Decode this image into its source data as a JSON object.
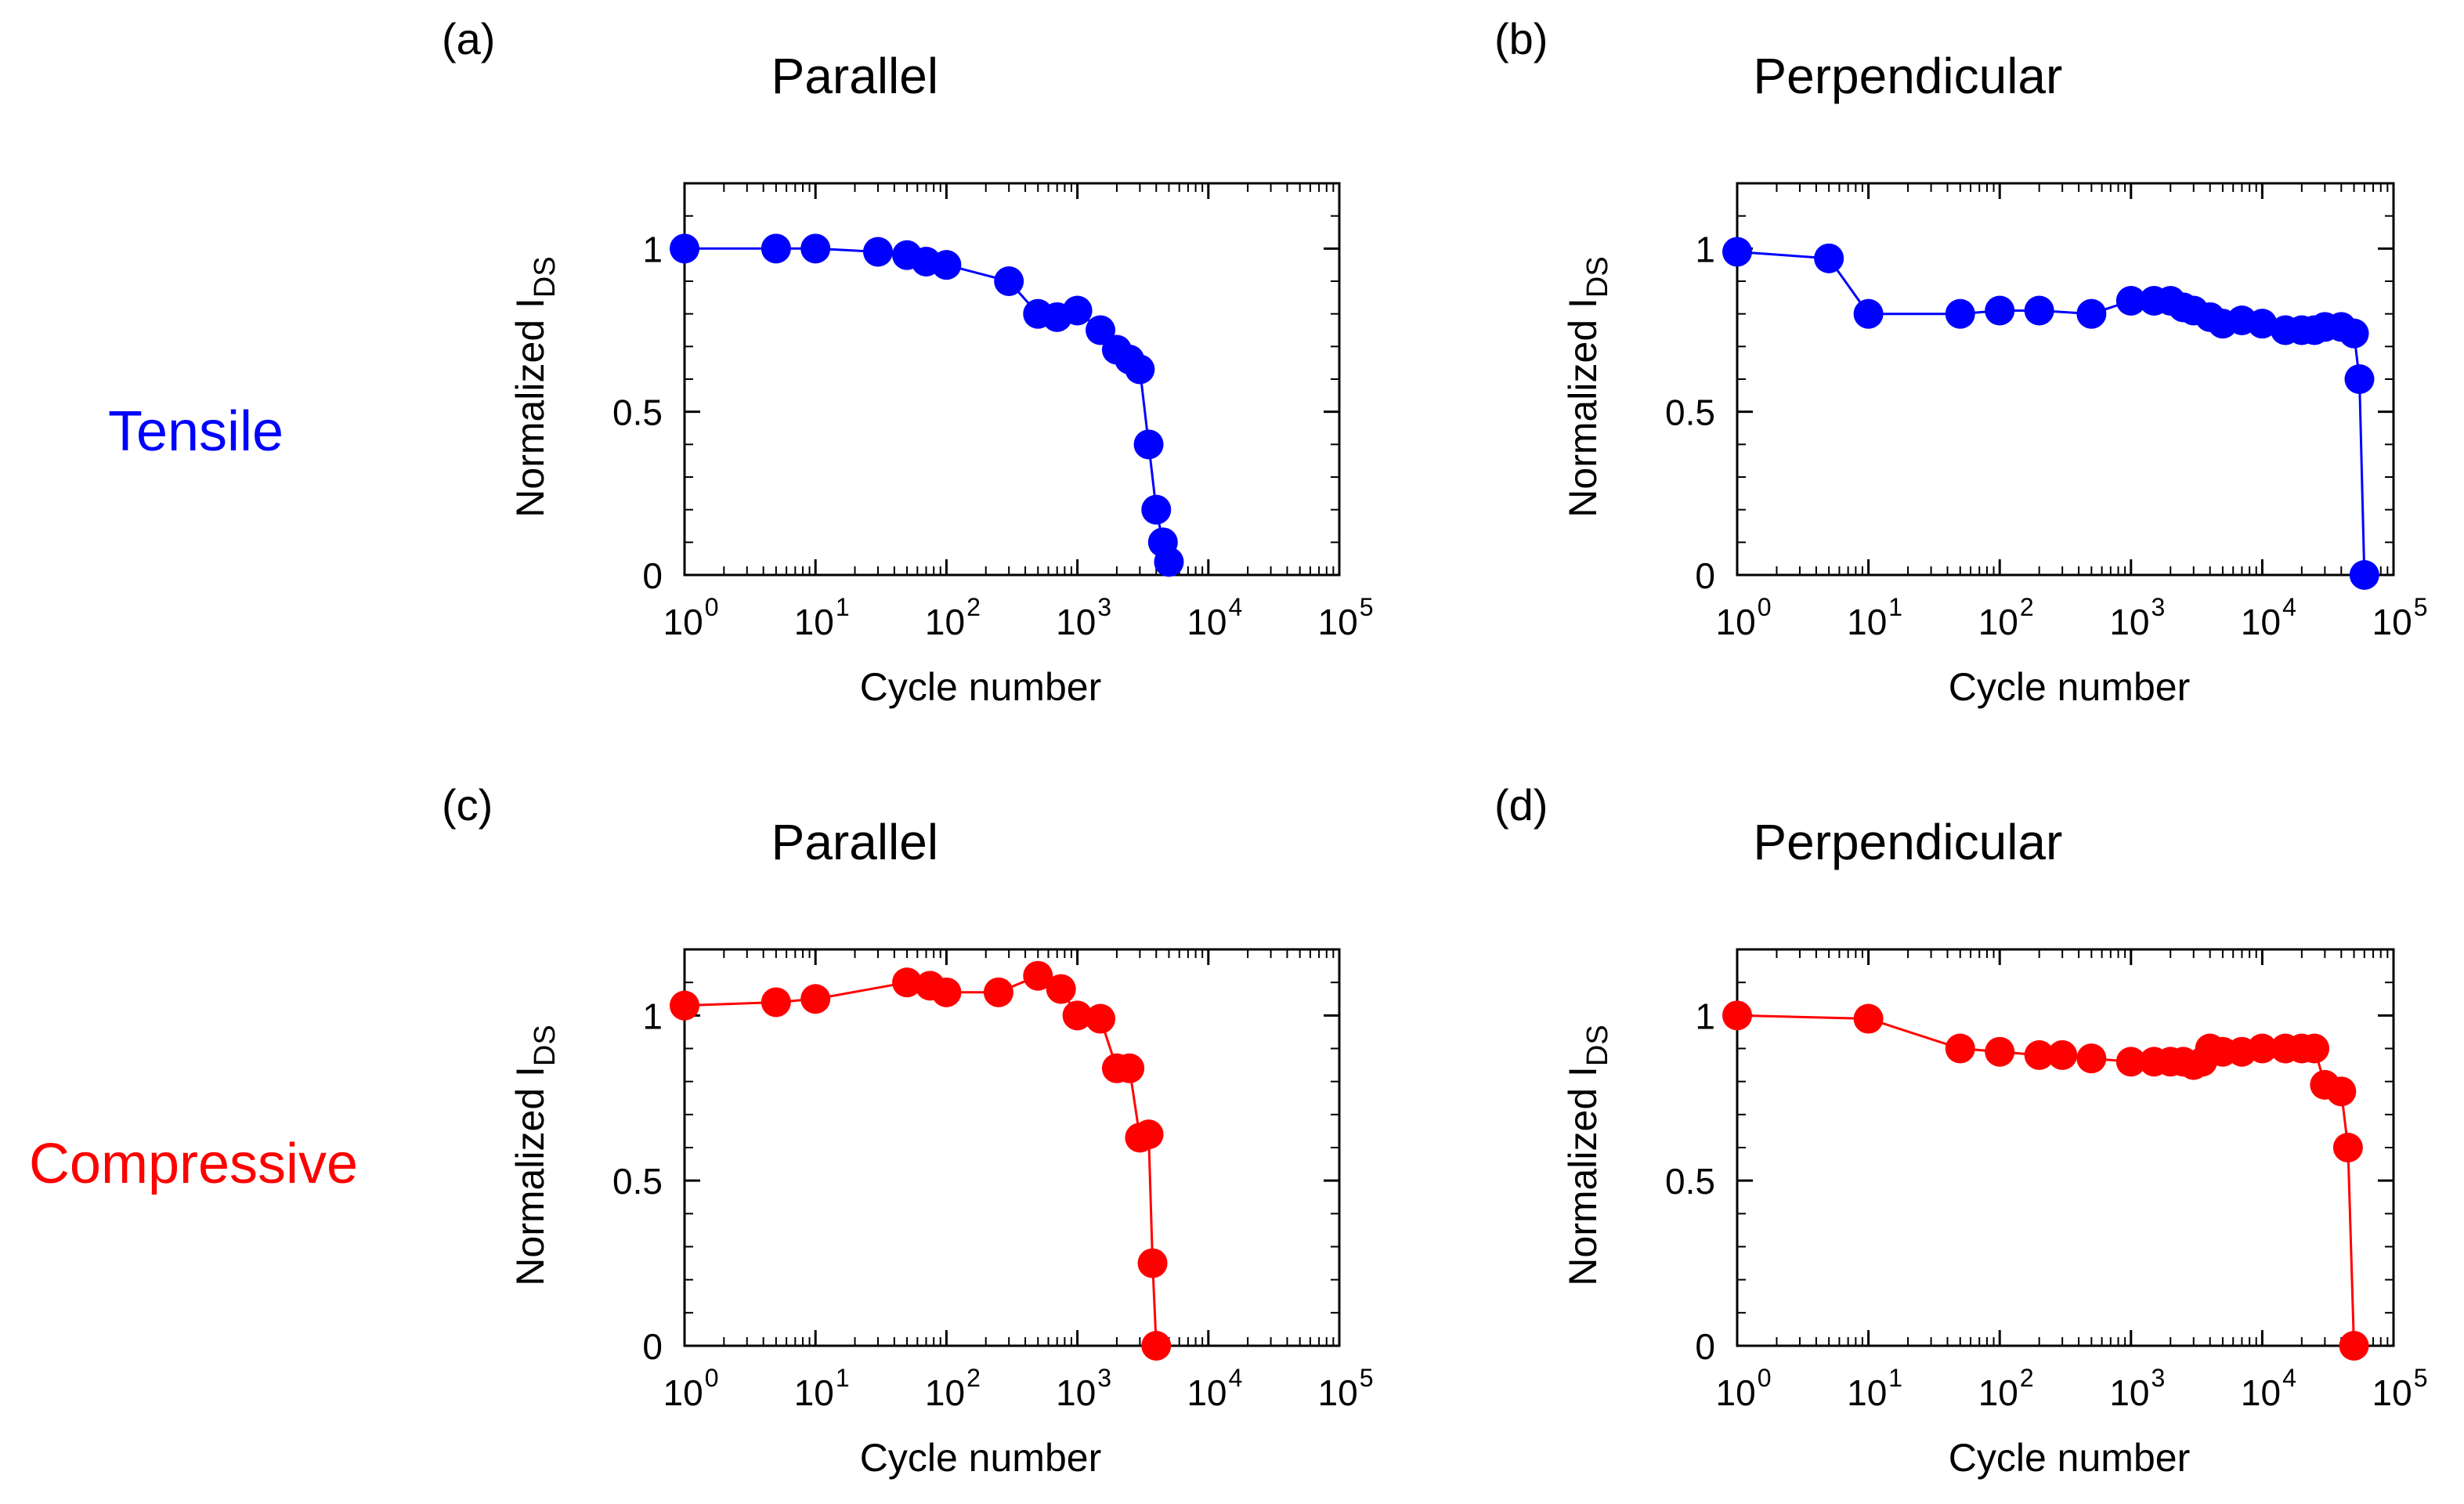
{
  "figure": {
    "row_labels": [
      {
        "text": "Tensile",
        "color": "#0000ff"
      },
      {
        "text": "Compressive",
        "color": "#ff0000"
      }
    ]
  },
  "chart_data": [
    {
      "type": "line",
      "panel_label": "(a)",
      "title": "Parallel",
      "xlabel": "Cycle number",
      "ylabel_main": "Normalized I",
      "ylabel_sub": "DS",
      "xscale": "log",
      "xlim": [
        1,
        100000
      ],
      "ylim": [
        0,
        1.2
      ],
      "x_ticks": [
        {
          "base": "10",
          "exp": "0"
        },
        {
          "base": "10",
          "exp": "1"
        },
        {
          "base": "10",
          "exp": "2"
        },
        {
          "base": "10",
          "exp": "3"
        },
        {
          "base": "10",
          "exp": "4"
        },
        {
          "base": "10",
          "exp": "5"
        }
      ],
      "y_ticks": [
        "0",
        "0.5",
        "1"
      ],
      "y_tick_values": [
        0,
        0.5,
        1
      ],
      "color": "#0000ff",
      "x": [
        1,
        5,
        10,
        30,
        50,
        70,
        100,
        300,
        500,
        700,
        1000,
        1500,
        2000,
        2500,
        3000,
        3500,
        4000,
        4500,
        5000
      ],
      "y": [
        1.0,
        1.0,
        1.0,
        0.99,
        0.98,
        0.96,
        0.95,
        0.9,
        0.8,
        0.79,
        0.81,
        0.75,
        0.69,
        0.66,
        0.63,
        0.4,
        0.2,
        0.1,
        0.04
      ]
    },
    {
      "type": "line",
      "panel_label": "(b)",
      "title": "Perpendicular",
      "xlabel": "Cycle number",
      "ylabel_main": "Normalized I",
      "ylabel_sub": "DS",
      "xscale": "log",
      "xlim": [
        1,
        100000
      ],
      "ylim": [
        0,
        1.2
      ],
      "x_ticks": [
        {
          "base": "10",
          "exp": "0"
        },
        {
          "base": "10",
          "exp": "1"
        },
        {
          "base": "10",
          "exp": "2"
        },
        {
          "base": "10",
          "exp": "3"
        },
        {
          "base": "10",
          "exp": "4"
        },
        {
          "base": "10",
          "exp": "5"
        }
      ],
      "y_ticks": [
        "0",
        "0.5",
        "1"
      ],
      "y_tick_values": [
        0,
        0.5,
        1
      ],
      "color": "#0000ff",
      "x": [
        1,
        5,
        10,
        50,
        100,
        200,
        500,
        1000,
        1500,
        2000,
        2500,
        3000,
        4000,
        5000,
        7000,
        10000,
        15000,
        20000,
        25000,
        30000,
        40000,
        50000,
        55000,
        60000
      ],
      "y": [
        0.99,
        0.97,
        0.8,
        0.8,
        0.81,
        0.81,
        0.8,
        0.84,
        0.84,
        0.84,
        0.82,
        0.81,
        0.79,
        0.77,
        0.78,
        0.77,
        0.75,
        0.75,
        0.75,
        0.76,
        0.76,
        0.74,
        0.6,
        0.0
      ]
    },
    {
      "type": "line",
      "panel_label": "(c)",
      "title": "Parallel",
      "xlabel": "Cycle number",
      "ylabel_main": "Normalized I",
      "ylabel_sub": "DS",
      "xscale": "log",
      "xlim": [
        1,
        100000
      ],
      "ylim": [
        0,
        1.2
      ],
      "x_ticks": [
        {
          "base": "10",
          "exp": "0"
        },
        {
          "base": "10",
          "exp": "1"
        },
        {
          "base": "10",
          "exp": "2"
        },
        {
          "base": "10",
          "exp": "3"
        },
        {
          "base": "10",
          "exp": "4"
        },
        {
          "base": "10",
          "exp": "5"
        }
      ],
      "y_ticks": [
        "0",
        "0.5",
        "1"
      ],
      "y_tick_values": [
        0,
        0.5,
        1
      ],
      "color": "#ff0000",
      "x": [
        1,
        5,
        10,
        50,
        75,
        100,
        250,
        500,
        750,
        1000,
        1500,
        2000,
        2500,
        3000,
        3500,
        3750,
        4000
      ],
      "y": [
        1.03,
        1.04,
        1.05,
        1.1,
        1.09,
        1.07,
        1.07,
        1.12,
        1.08,
        1.0,
        0.99,
        0.84,
        0.84,
        0.63,
        0.64,
        0.25,
        0.0
      ]
    },
    {
      "type": "line",
      "panel_label": "(d)",
      "title": "Perpendicular",
      "xlabel": "Cycle number",
      "ylabel_main": "Normalized I",
      "ylabel_sub": "DS",
      "xscale": "log",
      "xlim": [
        1,
        100000
      ],
      "ylim": [
        0,
        1.2
      ],
      "x_ticks": [
        {
          "base": "10",
          "exp": "0"
        },
        {
          "base": "10",
          "exp": "1"
        },
        {
          "base": "10",
          "exp": "2"
        },
        {
          "base": "10",
          "exp": "3"
        },
        {
          "base": "10",
          "exp": "4"
        },
        {
          "base": "10",
          "exp": "5"
        }
      ],
      "y_ticks": [
        "0",
        "0.5",
        "1"
      ],
      "y_tick_values": [
        0,
        0.5,
        1
      ],
      "color": "#ff0000",
      "x": [
        1,
        10,
        50,
        100,
        200,
        300,
        500,
        1000,
        1500,
        2000,
        2500,
        3000,
        3500,
        4000,
        5000,
        7000,
        10000,
        15000,
        20000,
        25000,
        30000,
        40000,
        45000,
        50000
      ],
      "y": [
        1.0,
        0.99,
        0.9,
        0.89,
        0.88,
        0.88,
        0.87,
        0.86,
        0.86,
        0.86,
        0.86,
        0.85,
        0.86,
        0.9,
        0.89,
        0.89,
        0.9,
        0.9,
        0.9,
        0.9,
        0.79,
        0.77,
        0.6,
        0.0
      ]
    }
  ]
}
